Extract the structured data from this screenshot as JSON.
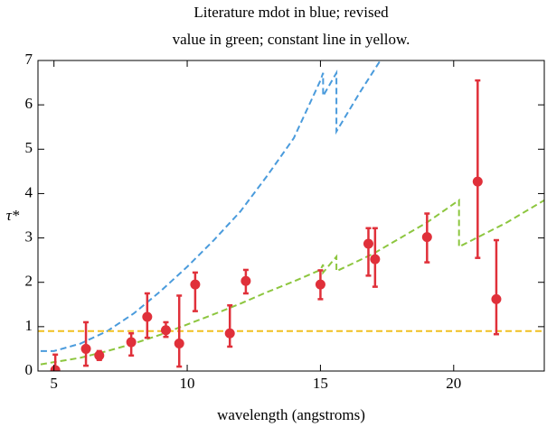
{
  "chart_data": {
    "type": "line",
    "title": [
      "Literature mdot in blue; revised",
      "value in green; constant line in yellow."
    ],
    "xlabel": "wavelength (angstroms)",
    "ylabel": "τ*",
    "xlim": [
      4.4,
      23.4
    ],
    "xticks": [
      5,
      10,
      15,
      20
    ],
    "ylim": [
      0,
      7
    ],
    "yticks": [
      0,
      1,
      2,
      3,
      4,
      5,
      6,
      7
    ],
    "series": [
      {
        "color": "#4a9bdc",
        "x": [
          4.5,
          5,
          6,
          7,
          8,
          9,
          10,
          11,
          12,
          13,
          14,
          15,
          15.1,
          15.1,
          15.6,
          15.6,
          16.5,
          17.3
        ],
        "values": [
          0.45,
          0.45,
          0.62,
          0.9,
          1.3,
          1.8,
          2.35,
          2.95,
          3.6,
          4.4,
          5.25,
          6.55,
          6.72,
          6.2,
          6.72,
          5.4,
          6.3,
          7.05
        ]
      },
      {
        "color": "#8dc63f",
        "x": [
          4.5,
          5,
          6,
          7,
          8,
          9,
          10,
          11,
          12,
          13,
          14,
          15,
          15.1,
          15.1,
          15.6,
          15.6,
          17,
          19,
          20.2,
          20.2,
          22,
          23.4
        ],
        "values": [
          0.15,
          0.2,
          0.3,
          0.45,
          0.62,
          0.82,
          1.05,
          1.28,
          1.52,
          1.78,
          2.02,
          2.28,
          2.4,
          2.22,
          2.58,
          2.25,
          2.65,
          3.35,
          3.85,
          2.8,
          3.35,
          3.85
        ]
      },
      {
        "color": "#f0c020",
        "x": [
          4.4,
          23.4
        ],
        "values": [
          0.9,
          0.9
        ]
      }
    ],
    "errorbars": {
      "color": "#e0303a",
      "x": [
        5.05,
        6.2,
        6.7,
        7.9,
        8.5,
        9.2,
        9.7,
        10.3,
        11.6,
        12.2,
        15.0,
        16.8,
        17.05,
        19.0,
        20.9,
        21.6
      ],
      "values": [
        0.02,
        0.5,
        0.35,
        0.65,
        1.22,
        0.92,
        0.62,
        1.95,
        0.85,
        2.03,
        1.95,
        2.87,
        2.52,
        3.02,
        4.27,
        1.62
      ],
      "err_low": [
        0.3,
        0.38,
        0.1,
        0.3,
        0.47,
        0.15,
        0.52,
        0.6,
        0.3,
        0.28,
        0.33,
        0.72,
        0.62,
        0.57,
        1.72,
        0.79
      ],
      "err_high": [
        0.35,
        0.6,
        0.1,
        0.2,
        0.53,
        0.18,
        1.08,
        0.27,
        0.63,
        0.25,
        0.32,
        0.35,
        0.7,
        0.53,
        2.28,
        1.33
      ]
    }
  }
}
